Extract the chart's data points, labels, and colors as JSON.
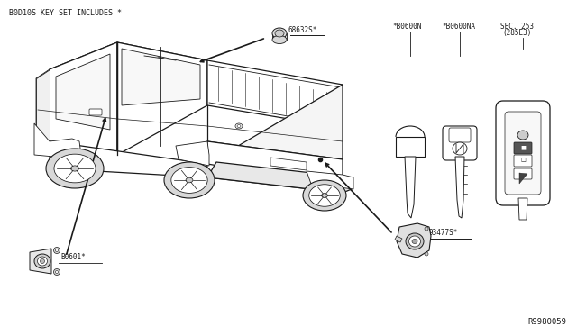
{
  "bg_color": "#ffffff",
  "title_text": "B0D10S KEY SET INCLUDES *",
  "diagram_ref": "R9980059",
  "label_68632": "68632S*",
  "label_b0601": "B0601*",
  "label_93477": "93477S*",
  "label_k1": "*B0600N",
  "label_k2": "*B0600NA",
  "label_sec1": "SEC. 253",
  "label_sec2": "(285E3)",
  "line_color": "#1a1a1a",
  "text_color": "#1a1a1a",
  "fs_title": 6.0,
  "fs_label": 5.5,
  "fs_ref": 6.5
}
